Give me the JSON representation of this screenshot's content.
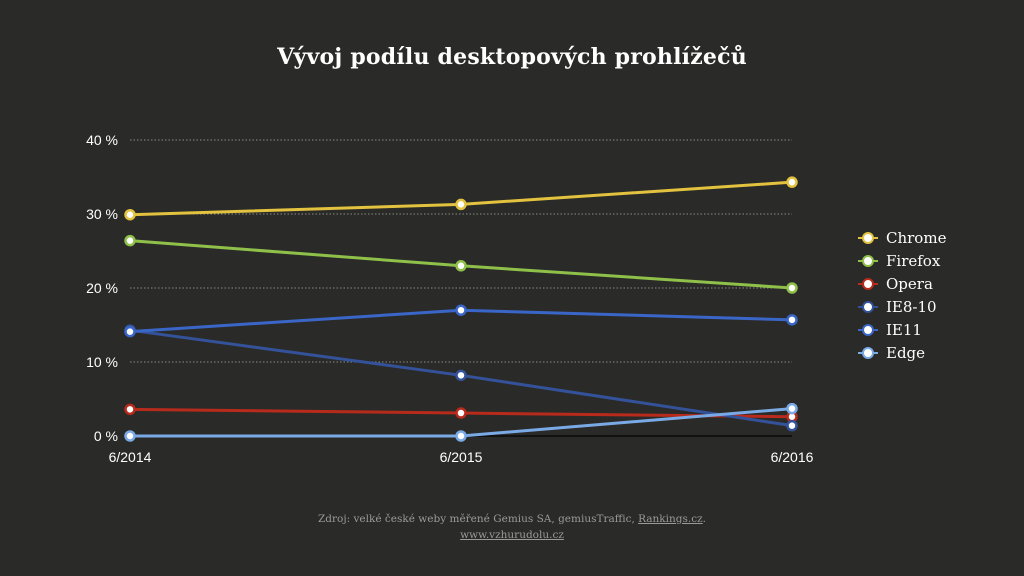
{
  "title": "Vývoj podílu desktopových prohlížečů",
  "source": {
    "prefix": "Zdroj: velké české weby měřené Gemius SA, gemiusTraffic,",
    "link": "Rankings.cz",
    "suffix": ".",
    "site": "www.vzhurudolu.cz"
  },
  "chart_data": {
    "type": "line",
    "title": "Vývoj podílu desktopových prohlížečů",
    "xlabel": "",
    "ylabel": "",
    "categories": [
      "6/2014",
      "6/2015",
      "6/2016"
    ],
    "ylim": [
      0,
      40
    ],
    "yticks": [
      0,
      10,
      20,
      30,
      40
    ],
    "ytick_labels": [
      "0 %",
      "10 %",
      "20 %",
      "30 %",
      "40 %"
    ],
    "grid": true,
    "legend_position": "right",
    "series": [
      {
        "name": "Chrome",
        "color": "#e2c23e",
        "values": [
          29.9,
          31.3,
          34.3
        ]
      },
      {
        "name": "Firefox",
        "color": "#8fc04a",
        "values": [
          26.4,
          23.0,
          20.0
        ]
      },
      {
        "name": "Opera",
        "color": "#b82a1c",
        "values": [
          3.6,
          3.1,
          2.6
        ]
      },
      {
        "name": "IE8-10",
        "color": "#34529a",
        "values": [
          14.3,
          8.2,
          1.4
        ]
      },
      {
        "name": "IE11",
        "color": "#3a66c8",
        "values": [
          14.1,
          17.0,
          15.7
        ]
      },
      {
        "name": "Edge",
        "color": "#7aaae6",
        "values": [
          0,
          0,
          3.7
        ]
      }
    ]
  }
}
